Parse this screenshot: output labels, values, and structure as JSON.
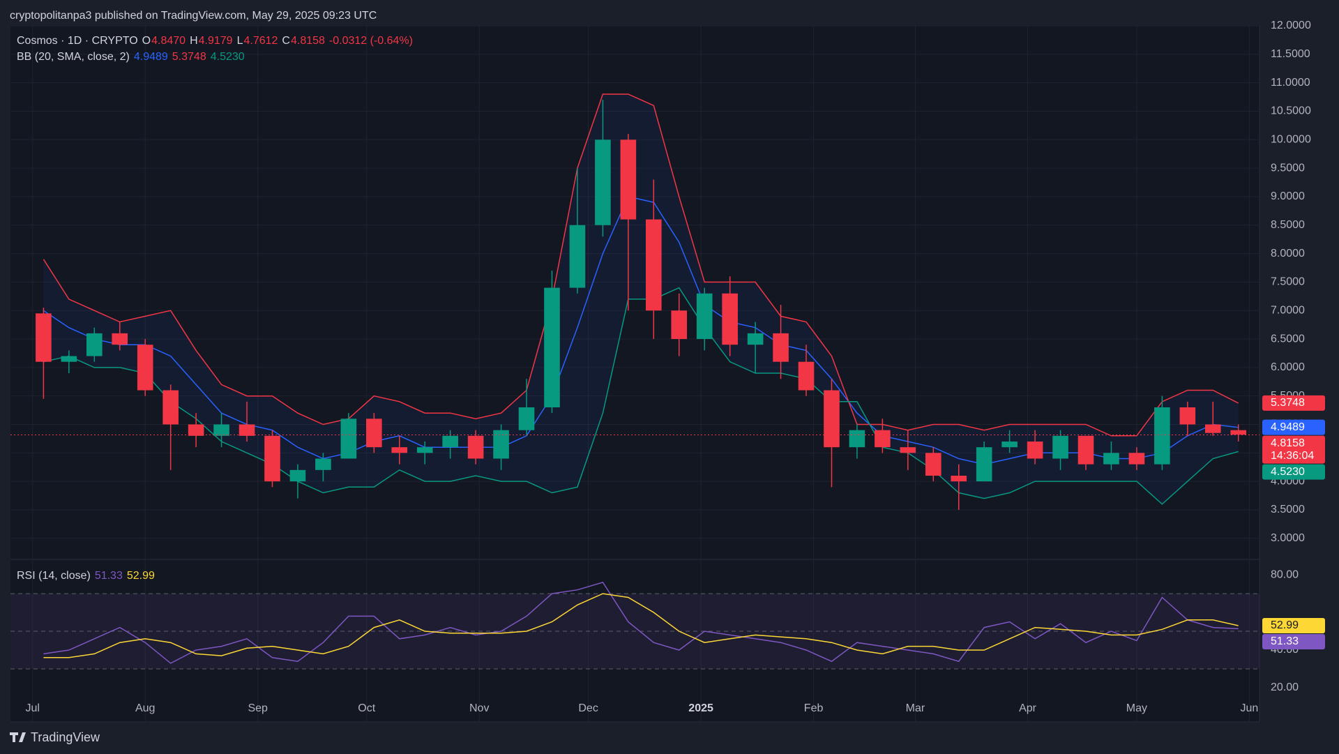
{
  "header": {
    "published": "cryptopolitanpa3 published on TradingView.com, May 29, 2025 09:23 UTC"
  },
  "footer": {
    "brand": "TradingView"
  },
  "chart_data": [
    {
      "type": "candlestick",
      "legend": {
        "symbol": "Cosmos · 1D · CRYPTO",
        "ohlc": [
          {
            "key": "O",
            "value": "4.8470"
          },
          {
            "key": "H",
            "value": "4.9179"
          },
          {
            "key": "L",
            "value": "4.7612"
          },
          {
            "key": "C",
            "value": "4.8158"
          }
        ],
        "change": "-0.0312 (-0.64%)"
      },
      "indicator": {
        "name": "BB (20, SMA, close, 2)",
        "values": [
          "4.9489",
          "5.3748",
          "4.5230"
        ]
      },
      "categories": [
        null,
        null,
        null,
        null,
        null,
        null,
        null,
        null,
        null,
        null,
        null,
        null,
        null,
        null,
        null,
        null,
        null,
        null,
        null,
        null,
        null,
        null,
        null,
        null,
        null,
        null,
        null,
        null,
        null,
        null,
        null,
        null,
        null,
        null,
        null,
        null,
        null,
        null,
        null,
        null,
        null,
        null,
        null,
        null,
        null,
        null,
        null,
        null
      ],
      "open": [
        6.95,
        6.1,
        6.2,
        6.6,
        6.4,
        5.6,
        5.0,
        4.8,
        5.0,
        4.8,
        4.0,
        4.2,
        4.4,
        5.1,
        4.6,
        4.5,
        4.6,
        4.8,
        4.4,
        4.9,
        5.3,
        7.4,
        8.5,
        10.0,
        8.6,
        7.0,
        6.5,
        7.3,
        6.4,
        6.6,
        6.1,
        5.6,
        4.6,
        4.9,
        4.6,
        4.5,
        4.1,
        4.0,
        4.6,
        4.7,
        4.4,
        4.8,
        4.3,
        4.5,
        4.3,
        5.3,
        5.0,
        4.9
      ],
      "high": [
        7.05,
        6.3,
        6.7,
        6.8,
        6.5,
        5.7,
        5.2,
        5.2,
        5.4,
        4.9,
        4.3,
        4.5,
        5.2,
        5.2,
        4.8,
        4.7,
        4.9,
        4.9,
        5.0,
        5.8,
        7.7,
        9.5,
        10.7,
        10.1,
        9.3,
        7.3,
        7.4,
        7.6,
        6.8,
        7.1,
        6.4,
        5.8,
        5.0,
        5.1,
        4.9,
        4.6,
        4.3,
        4.7,
        4.9,
        4.9,
        4.9,
        4.8,
        4.7,
        4.6,
        5.5,
        5.4,
        5.4,
        5.0
      ],
      "low": [
        5.45,
        5.9,
        6.1,
        6.3,
        5.5,
        4.2,
        4.6,
        4.6,
        4.7,
        3.9,
        3.7,
        4.0,
        4.4,
        4.5,
        4.3,
        4.3,
        4.4,
        4.3,
        4.2,
        4.8,
        5.2,
        7.3,
        8.3,
        7.0,
        6.5,
        6.2,
        6.3,
        6.2,
        5.9,
        5.8,
        5.5,
        3.9,
        4.4,
        4.5,
        4.2,
        4.0,
        3.5,
        4.0,
        4.5,
        4.3,
        4.2,
        4.2,
        4.2,
        4.2,
        4.2,
        4.8,
        4.8,
        4.7
      ],
      "close": [
        6.1,
        6.2,
        6.6,
        6.4,
        5.6,
        5.0,
        4.8,
        5.0,
        4.8,
        4.0,
        4.2,
        4.4,
        5.1,
        4.6,
        4.5,
        4.6,
        4.8,
        4.4,
        4.9,
        5.3,
        7.4,
        8.5,
        10.0,
        8.6,
        7.0,
        6.5,
        7.3,
        6.4,
        6.6,
        6.1,
        5.6,
        4.6,
        4.9,
        4.6,
        4.5,
        4.1,
        4.0,
        4.6,
        4.7,
        4.4,
        4.8,
        4.3,
        4.5,
        4.3,
        5.3,
        5.0,
        4.85,
        4.82
      ],
      "up_color": "#089981",
      "down_color": "#f23645",
      "overlays": [
        {
          "color": "#2962ff",
          "values": [
            7.0,
            6.7,
            6.5,
            6.4,
            6.4,
            6.2,
            5.7,
            5.2,
            5.0,
            4.9,
            4.6,
            4.4,
            4.5,
            4.7,
            4.8,
            4.6,
            4.6,
            4.6,
            4.6,
            4.8,
            5.5,
            6.7,
            8.0,
            9.0,
            8.9,
            8.2,
            7.1,
            6.8,
            6.7,
            6.4,
            6.3,
            5.8,
            5.2,
            4.8,
            4.7,
            4.6,
            4.4,
            4.3,
            4.4,
            4.5,
            4.5,
            4.5,
            4.4,
            4.4,
            4.5,
            4.8,
            5.0,
            4.9489
          ]
        },
        {
          "color": "#f23645",
          "values": [
            7.9,
            7.2,
            7.0,
            6.8,
            6.9,
            7.0,
            6.3,
            5.7,
            5.5,
            5.5,
            5.2,
            5.0,
            5.1,
            5.5,
            5.4,
            5.2,
            5.2,
            5.1,
            5.2,
            5.6,
            7.2,
            9.5,
            10.8,
            10.8,
            10.6,
            9.0,
            7.5,
            7.5,
            7.5,
            6.9,
            6.8,
            6.2,
            5.0,
            5.0,
            4.9,
            5.0,
            5.0,
            4.9,
            5.0,
            5.0,
            5.0,
            5.0,
            4.8,
            4.8,
            5.4,
            5.6,
            5.6,
            5.3748
          ]
        },
        {
          "color": "#089981",
          "values": [
            6.1,
            6.2,
            6.0,
            6.0,
            5.9,
            5.4,
            5.1,
            4.7,
            4.5,
            4.3,
            4.0,
            3.8,
            3.9,
            3.9,
            4.2,
            4.0,
            4.0,
            4.1,
            4.0,
            4.0,
            3.8,
            3.9,
            5.2,
            7.2,
            7.2,
            7.4,
            6.7,
            6.1,
            5.9,
            5.9,
            5.8,
            5.4,
            5.4,
            4.6,
            4.5,
            4.2,
            3.8,
            3.7,
            3.8,
            4.0,
            4.0,
            4.0,
            4.0,
            4.0,
            3.6,
            4.0,
            4.4,
            4.523
          ]
        }
      ],
      "band_fill": "rgba(41,98,255,0.07)",
      "xlim": [
        -1.3,
        47.83
      ],
      "xticks": [
        {
          "value": -0.43,
          "label": "Jul"
        },
        {
          "value": 4,
          "label": "Aug"
        },
        {
          "value": 8.43,
          "label": "Sep"
        },
        {
          "value": 12.71,
          "label": "Oct"
        },
        {
          "value": 17.14,
          "label": "Nov"
        },
        {
          "value": 21.43,
          "label": "Dec"
        },
        {
          "value": 25.86,
          "label": "2025",
          "bold": true
        },
        {
          "value": 30.29,
          "label": "Feb"
        },
        {
          "value": 34.29,
          "label": "Mar"
        },
        {
          "value": 38.71,
          "label": "Apr"
        },
        {
          "value": 43,
          "label": "May"
        },
        {
          "value": 47.43,
          "label": "Jun"
        }
      ],
      "ylim": [
        2.63,
        12.0
      ],
      "yticks": [
        {
          "value": 3,
          "label": "3.0000"
        },
        {
          "value": 3.5,
          "label": "3.5000"
        },
        {
          "value": 4,
          "label": "4.0000"
        },
        {
          "value": 4.5,
          "label": "4.5000"
        },
        {
          "value": 5,
          "label": "5.0000"
        },
        {
          "value": 5.5,
          "label": "5.5000"
        },
        {
          "value": 6,
          "label": "6.0000"
        },
        {
          "value": 6.5,
          "label": "6.5000"
        },
        {
          "value": 7,
          "label": "7.0000"
        },
        {
          "value": 7.5,
          "label": "7.5000"
        },
        {
          "value": 8,
          "label": "8.0000"
        },
        {
          "value": 8.5,
          "label": "8.5000"
        },
        {
          "value": 9,
          "label": "9.0000"
        },
        {
          "value": 9.5,
          "label": "9.5000"
        },
        {
          "value": 10,
          "label": "10.0000"
        },
        {
          "value": 10.5,
          "label": "10.5000"
        },
        {
          "value": 11,
          "label": "11.0000"
        },
        {
          "value": 11.5,
          "label": "11.5000"
        },
        {
          "value": 12,
          "label": "12.0000"
        }
      ],
      "grid": true,
      "price_tags": [
        {
          "value": 5.3748,
          "label": "5.3748",
          "color": "#f23645"
        },
        {
          "value": 4.9489,
          "label": "4.9489",
          "color": "#2962ff"
        },
        {
          "value": 4.8158,
          "label": "4.8158",
          "sub": "14:36:04",
          "color": "#f23645"
        },
        {
          "value": 4.523,
          "label": "4.5230",
          "color": "#089981"
        }
      ]
    },
    {
      "type": "line",
      "indicator": {
        "name": "RSI (14, close)",
        "values": [
          "51.33",
          "52.99"
        ]
      },
      "series": [
        {
          "color": "#7e57c2",
          "values": [
            38,
            40,
            46,
            52,
            44,
            33,
            40,
            42,
            46,
            36,
            34,
            44,
            58,
            58,
            46,
            48,
            52,
            48,
            50,
            58,
            70,
            72,
            76,
            55,
            44,
            40,
            50,
            48,
            46,
            44,
            40,
            34,
            44,
            42,
            40,
            38,
            34,
            52,
            55,
            46,
            54,
            44,
            50,
            45,
            68,
            56,
            52,
            51.33
          ]
        },
        {
          "color": "#fdd835",
          "values": [
            36,
            36,
            38,
            44,
            46,
            44,
            38,
            37,
            41,
            42,
            40,
            38,
            42,
            52,
            56,
            50,
            49,
            49,
            49,
            50,
            55,
            64,
            70,
            68,
            60,
            50,
            44,
            46,
            48,
            47,
            46,
            44,
            40,
            38,
            42,
            42,
            40,
            40,
            46,
            52,
            51,
            50,
            48,
            48,
            51,
            56,
            56,
            52.99
          ]
        }
      ],
      "ylim": [
        1.8,
        88.2
      ],
      "yticks": [
        {
          "value": 80,
          "label": "80.00"
        },
        {
          "value": 40,
          "label": "40.00"
        },
        {
          "value": 20,
          "label": "20.00"
        }
      ],
      "levels": [
        70,
        50,
        30
      ],
      "band_fill": "rgba(126,87,194,0.10)",
      "price_tags": [
        {
          "value": 52.99,
          "label": "52.99",
          "color": "#fdd835",
          "text_color": "#131722"
        },
        {
          "value": 51.33,
          "label": "51.33",
          "color": "#7e57c2"
        }
      ]
    }
  ]
}
